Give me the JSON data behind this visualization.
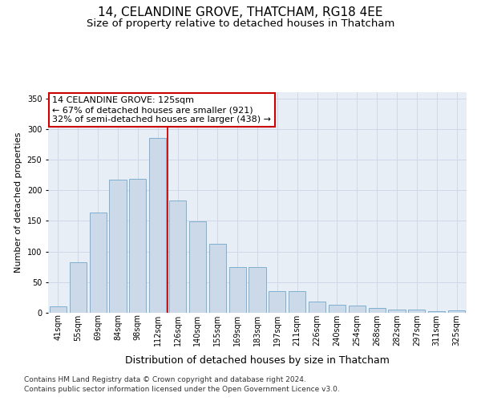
{
  "title": "14, CELANDINE GROVE, THATCHAM, RG18 4EE",
  "subtitle": "Size of property relative to detached houses in Thatcham",
  "xlabel": "Distribution of detached houses by size in Thatcham",
  "ylabel": "Number of detached properties",
  "categories": [
    "41sqm",
    "55sqm",
    "69sqm",
    "84sqm",
    "98sqm",
    "112sqm",
    "126sqm",
    "140sqm",
    "155sqm",
    "169sqm",
    "183sqm",
    "197sqm",
    "211sqm",
    "226sqm",
    "240sqm",
    "254sqm",
    "268sqm",
    "282sqm",
    "297sqm",
    "311sqm",
    "325sqm"
  ],
  "values": [
    10,
    83,
    163,
    217,
    218,
    285,
    183,
    149,
    113,
    75,
    75,
    35,
    35,
    18,
    13,
    12,
    8,
    5,
    5,
    2,
    4
  ],
  "bar_color": "#ccd9e8",
  "bar_edge_color": "#7fafd0",
  "annotation_title": "14 CELANDINE GROVE: 125sqm",
  "annotation_line1": "← 67% of detached houses are smaller (921)",
  "annotation_line2": "32% of semi-detached houses are larger (438) →",
  "box_color": "#ffffff",
  "box_edge_color": "#cc0000",
  "line_color": "#cc0000",
  "grid_color": "#d0d8e8",
  "background_color": "#e8eef5",
  "ylim": [
    0,
    360
  ],
  "yticks": [
    0,
    50,
    100,
    150,
    200,
    250,
    300,
    350
  ],
  "footnote1": "Contains HM Land Registry data © Crown copyright and database right 2024.",
  "footnote2": "Contains public sector information licensed under the Open Government Licence v3.0.",
  "title_fontsize": 11,
  "subtitle_fontsize": 9.5,
  "xlabel_fontsize": 9,
  "ylabel_fontsize": 8,
  "tick_fontsize": 7,
  "annotation_fontsize": 8,
  "footnote_fontsize": 6.5
}
